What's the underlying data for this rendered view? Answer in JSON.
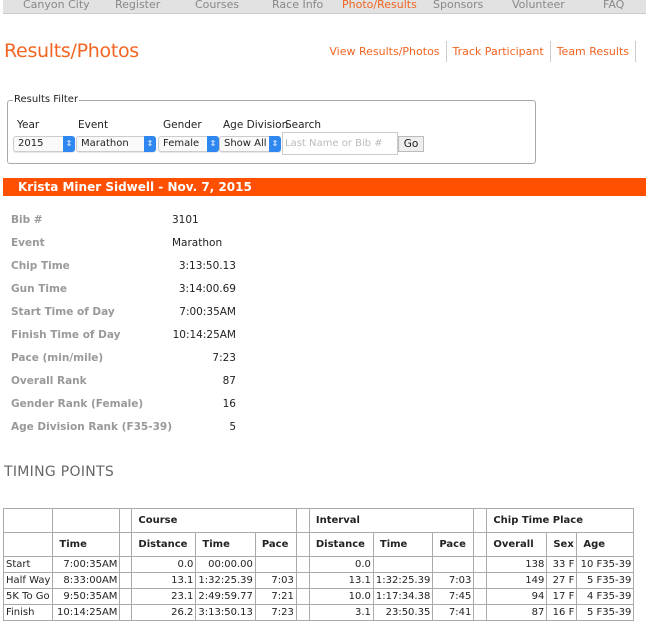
{
  "nav": {
    "items": [
      "Canyon City",
      "Register",
      "Courses",
      "Race Info",
      "Photo/Results",
      "Sponsors",
      "Volunteer",
      "FAQ"
    ],
    "active": "Photo/Results"
  },
  "page": {
    "title": "Results/Photos",
    "links": [
      "View Results/Photos",
      "Track Participant",
      "Team Results"
    ]
  },
  "filter": {
    "legend": "Results Filter",
    "year_label": "Year",
    "year": "2015",
    "event_label": "Event",
    "event": "Marathon",
    "gender_label": "Gender",
    "gender": "Female",
    "age_label": "Age Division",
    "age": "Show All",
    "search_label": "Search",
    "search_placeholder": "Last Name or Bib #",
    "go": "Go"
  },
  "banner": "Krista Miner Sidwell - Nov. 7, 2015",
  "details": [
    {
      "k": "Bib #",
      "v": "3101"
    },
    {
      "k": "Event",
      "v": "Marathon"
    },
    {
      "k": "Chip Time",
      "v": "3:13:50.13"
    },
    {
      "k": "Gun Time",
      "v": "3:14:00.69"
    },
    {
      "k": "Start Time of Day",
      "v": "7:00:35AM"
    },
    {
      "k": "Finish Time of Day",
      "v": "10:14:25AM"
    },
    {
      "k": "Pace (min/mile)",
      "v": "7:23"
    },
    {
      "k": "Overall Rank",
      "v": "87"
    },
    {
      "k": "Gender Rank (Female)",
      "v": "16"
    },
    {
      "k": "Age Division Rank (F35-39)",
      "v": "5"
    }
  ],
  "timing": {
    "title": "TIMING POINTS",
    "groups": [
      "Course",
      "Interval",
      "Chip Time Place"
    ],
    "headers": [
      "Time",
      "Distance",
      "Time",
      "Pace",
      "Distance",
      "Time",
      "Pace",
      "Overall",
      "Sex",
      "Age"
    ],
    "rows": [
      [
        "Start",
        "7:00:35AM",
        "0.0",
        "00:00.00",
        "",
        "0.0",
        "",
        "",
        "138",
        "33 F",
        "10 F35-39"
      ],
      [
        "Half Way",
        "8:33:00AM",
        "13.1",
        "1:32:25.39",
        "7:03",
        "13.1",
        "1:32:25.39",
        "7:03",
        "149",
        "27 F",
        "5 F35-39"
      ],
      [
        "5K To Go",
        "9:50:35AM",
        "23.1",
        "2:49:59.77",
        "7:21",
        "10.0",
        "1:17:34.38",
        "7:45",
        "94",
        "17 F",
        "4 F35-39"
      ],
      [
        "Finish",
        "10:14:25AM",
        "26.2",
        "3:13:50.13",
        "7:23",
        "3.1",
        "23:50.35",
        "7:41",
        "87",
        "16 F",
        "5 F35-39"
      ]
    ]
  }
}
